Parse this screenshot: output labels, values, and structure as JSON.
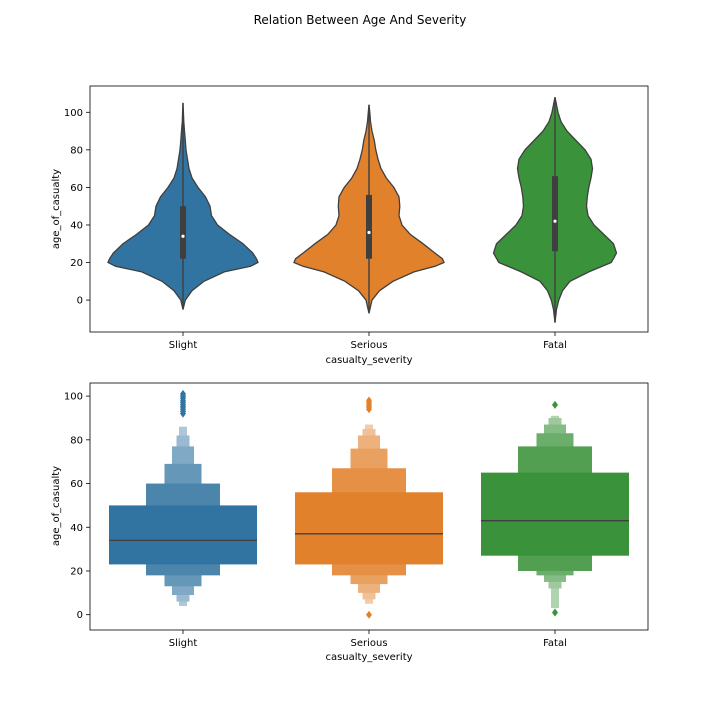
{
  "figure": {
    "title": "Relation Between Age And Severity"
  },
  "chart_data": [
    {
      "type": "violin",
      "xlabel": "casualty_severity",
      "ylabel": "age_of_casualty",
      "categories": [
        "Slight",
        "Serious",
        "Fatal"
      ],
      "colors": [
        "#3274a1",
        "#e1812c",
        "#3a923a"
      ],
      "ylim": [
        -17,
        114
      ],
      "yticks": [
        0,
        20,
        40,
        60,
        80,
        100
      ],
      "yticklabels": [
        "0",
        "20",
        "40",
        "60",
        "80",
        "100"
      ],
      "grid": false,
      "violins": [
        {
          "name": "Slight",
          "min": -5,
          "max": 105,
          "q1": 22,
          "median": 34,
          "q3": 50,
          "profile": [
            [
              -5,
              0.0
            ],
            [
              0,
              0.03
            ],
            [
              5,
              0.12
            ],
            [
              10,
              0.28
            ],
            [
              15,
              0.55
            ],
            [
              18,
              0.9
            ],
            [
              20,
              1.0
            ],
            [
              22,
              0.98
            ],
            [
              25,
              0.93
            ],
            [
              30,
              0.8
            ],
            [
              35,
              0.62
            ],
            [
              40,
              0.46
            ],
            [
              45,
              0.38
            ],
            [
              50,
              0.36
            ],
            [
              55,
              0.3
            ],
            [
              60,
              0.2
            ],
            [
              65,
              0.12
            ],
            [
              70,
              0.08
            ],
            [
              75,
              0.06
            ],
            [
              80,
              0.04
            ],
            [
              85,
              0.03
            ],
            [
              90,
              0.02
            ],
            [
              95,
              0.01
            ],
            [
              100,
              0.005
            ],
            [
              105,
              0.0
            ]
          ]
        },
        {
          "name": "Serious",
          "min": -7,
          "max": 104,
          "q1": 22,
          "median": 36,
          "q3": 56,
          "profile": [
            [
              -7,
              0.0
            ],
            [
              0,
              0.04
            ],
            [
              5,
              0.14
            ],
            [
              10,
              0.32
            ],
            [
              15,
              0.6
            ],
            [
              18,
              0.88
            ],
            [
              20,
              1.0
            ],
            [
              22,
              0.98
            ],
            [
              25,
              0.88
            ],
            [
              30,
              0.72
            ],
            [
              35,
              0.55
            ],
            [
              40,
              0.44
            ],
            [
              45,
              0.4
            ],
            [
              50,
              0.41
            ],
            [
              55,
              0.4
            ],
            [
              60,
              0.33
            ],
            [
              65,
              0.23
            ],
            [
              70,
              0.16
            ],
            [
              75,
              0.12
            ],
            [
              80,
              0.09
            ],
            [
              85,
              0.07
            ],
            [
              90,
              0.04
            ],
            [
              95,
              0.02
            ],
            [
              100,
              0.01
            ],
            [
              104,
              0.0
            ]
          ]
        },
        {
          "name": "Fatal",
          "min": -12,
          "max": 108,
          "q1": 26,
          "median": 42,
          "q3": 66,
          "profile": [
            [
              -12,
              0.0
            ],
            [
              -5,
              0.02
            ],
            [
              0,
              0.05
            ],
            [
              5,
              0.1
            ],
            [
              10,
              0.2
            ],
            [
              15,
              0.45
            ],
            [
              20,
              0.75
            ],
            [
              25,
              0.82
            ],
            [
              30,
              0.78
            ],
            [
              35,
              0.65
            ],
            [
              40,
              0.52
            ],
            [
              45,
              0.44
            ],
            [
              50,
              0.42
            ],
            [
              55,
              0.43
            ],
            [
              60,
              0.45
            ],
            [
              65,
              0.48
            ],
            [
              70,
              0.5
            ],
            [
              75,
              0.48
            ],
            [
              80,
              0.4
            ],
            [
              85,
              0.28
            ],
            [
              90,
              0.16
            ],
            [
              95,
              0.08
            ],
            [
              100,
              0.04
            ],
            [
              104,
              0.02
            ],
            [
              108,
              0.0
            ]
          ]
        }
      ]
    },
    {
      "type": "boxen",
      "xlabel": "casualty_severity",
      "ylabel": "age_of_casualty",
      "categories": [
        "Slight",
        "Serious",
        "Fatal"
      ],
      "colors": [
        "#3274a1",
        "#e1812c",
        "#3a923a"
      ],
      "ylim": [
        -7,
        106
      ],
      "yticks": [
        0,
        20,
        40,
        60,
        80,
        100
      ],
      "yticklabels": [
        "0",
        "20",
        "40",
        "60",
        "80",
        "100"
      ],
      "grid": false,
      "boxes": [
        {
          "name": "Slight",
          "median": 34,
          "levels": [
            [
              23,
              50
            ],
            [
              18,
              60
            ],
            [
              13,
              69
            ],
            [
              9,
              77
            ],
            [
              6,
              82
            ],
            [
              4,
              86
            ]
          ],
          "outliers": [
            92,
            93,
            94,
            95,
            96,
            97,
            98,
            99,
            100,
            101
          ]
        },
        {
          "name": "Serious",
          "median": 37,
          "levels": [
            [
              23,
              56
            ],
            [
              18,
              67
            ],
            [
              14,
              76
            ],
            [
              10,
              82
            ],
            [
              7,
              85
            ],
            [
              5,
              87
            ]
          ],
          "outliers": [
            0,
            94,
            95,
            96,
            97,
            98
          ]
        },
        {
          "name": "Fatal",
          "median": 43,
          "levels": [
            [
              27,
              65
            ],
            [
              20,
              77
            ],
            [
              18,
              83
            ],
            [
              15,
              87
            ],
            [
              12,
              90
            ],
            [
              3,
              91
            ]
          ],
          "outliers": [
            1,
            96
          ]
        }
      ]
    }
  ]
}
